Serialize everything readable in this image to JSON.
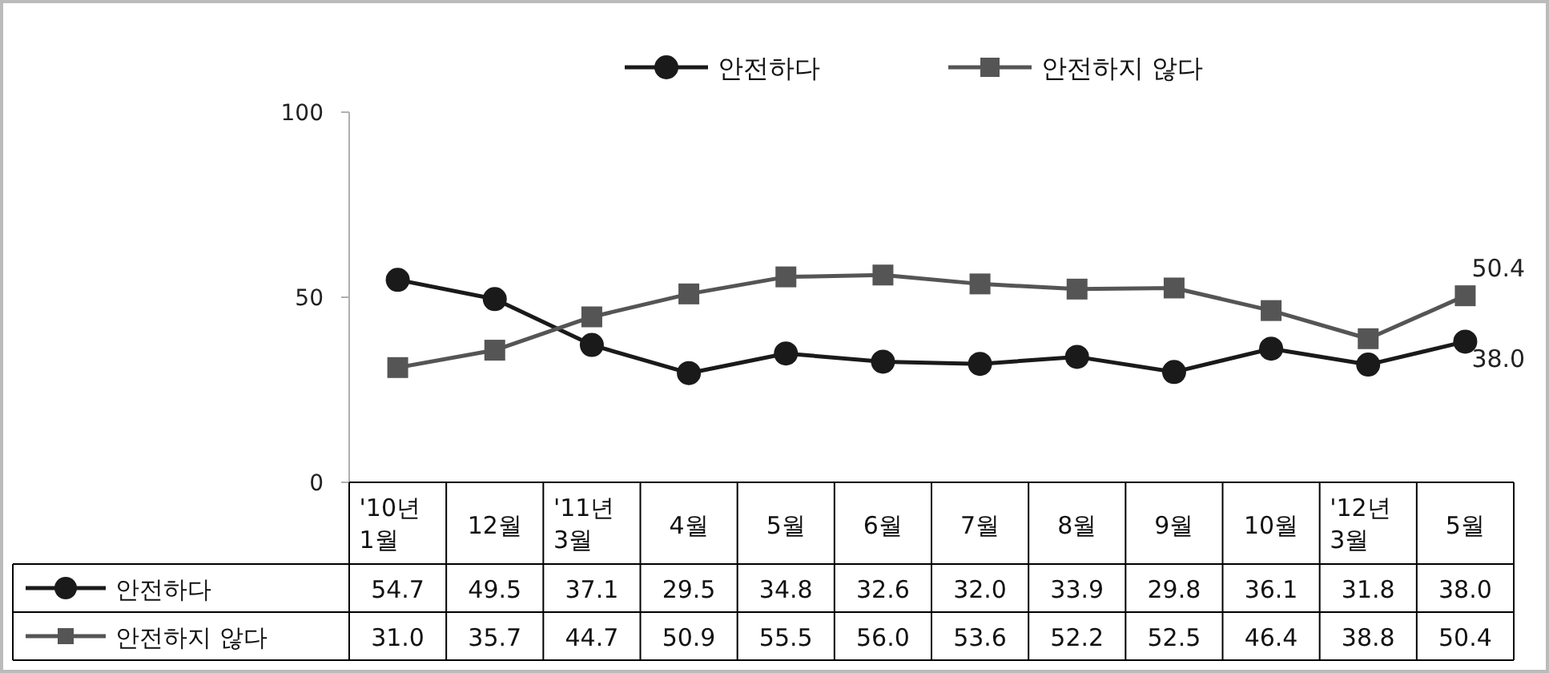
{
  "chart_data": {
    "type": "line",
    "categories": [
      "'10년\n1월",
      "12월",
      "'11년\n3월",
      "4월",
      "5월",
      "6월",
      "7월",
      "8월",
      "9월",
      "10월",
      "'12년\n3월",
      "5월"
    ],
    "series": [
      {
        "name": "안전하다",
        "color": "#1a1a1a",
        "marker": "circle",
        "values": [
          54.7,
          49.5,
          37.1,
          29.5,
          34.8,
          32.6,
          32.0,
          33.9,
          29.8,
          36.1,
          31.8,
          38.0
        ],
        "value_labels": [
          "54.7",
          "49.5",
          "37.1",
          "29.5",
          "34.8",
          "32.6",
          "32.0",
          "33.9",
          "29.8",
          "36.1",
          "31.8",
          "38.0"
        ]
      },
      {
        "name": "안전하지 않다",
        "color": "#555555",
        "marker": "square",
        "values": [
          31.0,
          35.7,
          44.7,
          50.9,
          55.5,
          56.0,
          53.6,
          52.2,
          52.5,
          46.4,
          38.8,
          50.4
        ],
        "value_labels": [
          "31.0",
          "35.7",
          "44.7",
          "50.9",
          "55.5",
          "56.0",
          "53.6",
          "52.2",
          "52.5",
          "46.4",
          "38.8",
          "50.4"
        ]
      }
    ],
    "ylim": [
      0,
      100
    ],
    "yticks": [
      0,
      50,
      100
    ],
    "grid": false,
    "legend": "top",
    "line_style": "solid"
  }
}
